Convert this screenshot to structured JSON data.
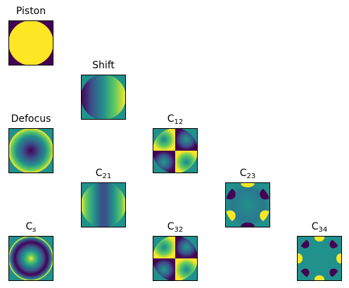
{
  "panels": {
    "piston": {
      "title": "Piston"
    },
    "shift": {
      "title": "Shift"
    },
    "defocus": {
      "title": "Defocus"
    },
    "c12": {
      "title_main": "C",
      "title_sub": "12"
    },
    "c21": {
      "title_main": "C",
      "title_sub": "21"
    },
    "c23": {
      "title_main": "C",
      "title_sub": "23"
    },
    "cs": {
      "title_main": "C",
      "title_sub": "s"
    },
    "c32": {
      "title_main": "C",
      "title_sub": "32"
    },
    "c34": {
      "title_main": "C",
      "title_sub": "34"
    }
  },
  "colors": {
    "viridis_dark": "#440154",
    "viridis_mid": "#21918c",
    "viridis_yellow": "#fde725"
  }
}
